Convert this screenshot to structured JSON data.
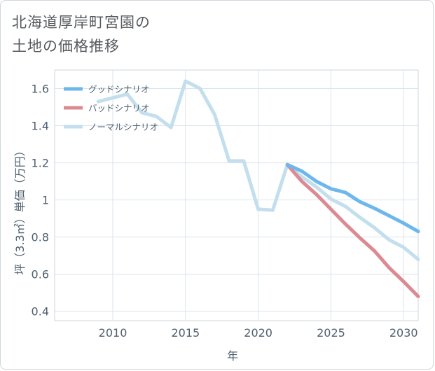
{
  "title_lines": [
    "北海道厚岸町宮園の",
    "土地の価格推移"
  ],
  "chart_data": {
    "type": "line",
    "xlabel": "年",
    "ylabel": "坪（3.3㎡）単価（万円）",
    "xlim": [
      2006,
      2031
    ],
    "ylim": [
      0.35,
      1.7
    ],
    "x_ticks": [
      2010,
      2015,
      2020,
      2025,
      2030
    ],
    "y_ticks": [
      0.4,
      0.6,
      0.8,
      1,
      1.2,
      1.4,
      1.6
    ],
    "y_tick_labels": [
      "0.4",
      "0.6",
      "0.8",
      "1",
      "1.2",
      "1.4",
      "1.6"
    ],
    "grid": true,
    "legend_position": "top-left",
    "series": [
      {
        "name": "グッドシナリオ",
        "color": "#6cb8ec",
        "x": [
          2022,
          2023,
          2024,
          2025,
          2026,
          2027,
          2028,
          2029,
          2030,
          2031
        ],
        "y": [
          1.19,
          1.155,
          1.1,
          1.06,
          1.04,
          0.99,
          0.955,
          0.915,
          0.875,
          0.83
        ]
      },
      {
        "name": "バッドシナリオ",
        "color": "#dc8a92",
        "x": [
          2022,
          2023,
          2024,
          2025,
          2026,
          2027,
          2028,
          2029,
          2030,
          2031
        ],
        "y": [
          1.19,
          1.1,
          1.03,
          0.95,
          0.87,
          0.795,
          0.725,
          0.635,
          0.56,
          0.48
        ]
      },
      {
        "name": "ノーマルシナリオ",
        "color": "#c3dfee",
        "x": [
          2009,
          2010,
          2011,
          2012,
          2013,
          2014,
          2015,
          2016,
          2017,
          2018,
          2019,
          2020,
          2021,
          2022,
          2023,
          2024,
          2025,
          2026,
          2027,
          2028,
          2029,
          2030,
          2031
        ],
        "y": [
          1.53,
          1.55,
          1.57,
          1.47,
          1.45,
          1.39,
          1.64,
          1.6,
          1.46,
          1.21,
          1.21,
          0.95,
          0.945,
          1.19,
          1.125,
          1.07,
          1.005,
          0.965,
          0.905,
          0.85,
          0.785,
          0.745,
          0.68
        ]
      }
    ]
  }
}
